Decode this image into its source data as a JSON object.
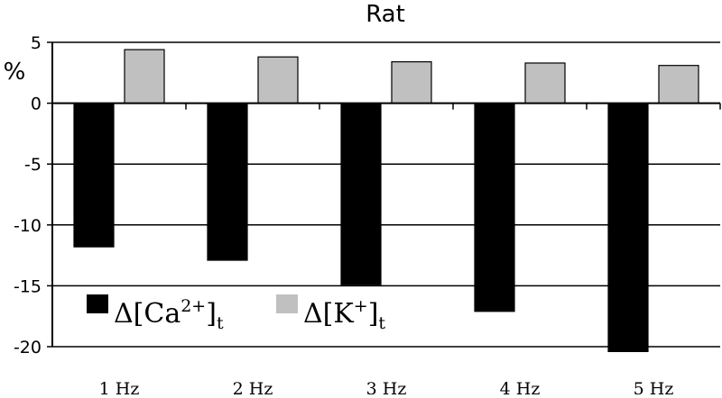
{
  "chart_data": {
    "type": "bar",
    "title": "Rat",
    "ylabel": "%",
    "xlabel": "",
    "categories": [
      "1 Hz",
      "2 Hz",
      "3 Hz",
      "4 Hz",
      "5 Hz"
    ],
    "series": [
      {
        "name": "Δ[Ca2+]t",
        "color": "#000000",
        "values": [
          -11.8,
          -12.9,
          -14.9,
          -17.1,
          -20.4
        ]
      },
      {
        "name": "Δ[K+]t",
        "color": "#c0c0c0",
        "values": [
          4.4,
          3.8,
          3.4,
          3.3,
          3.1
        ]
      }
    ],
    "ylim": [
      -20,
      5
    ],
    "yticks": [
      "5",
      "0",
      "-5",
      "-10",
      "-15",
      "-20"
    ],
    "grid": true,
    "legend": {
      "position": "bottom-left",
      "items": [
        {
          "base": "Δ[Ca",
          "sup": "2+",
          "close": "]",
          "sub": "t"
        },
        {
          "base": "Δ[K",
          "sup": "+",
          "close": "]",
          "sub": "t"
        }
      ]
    }
  }
}
